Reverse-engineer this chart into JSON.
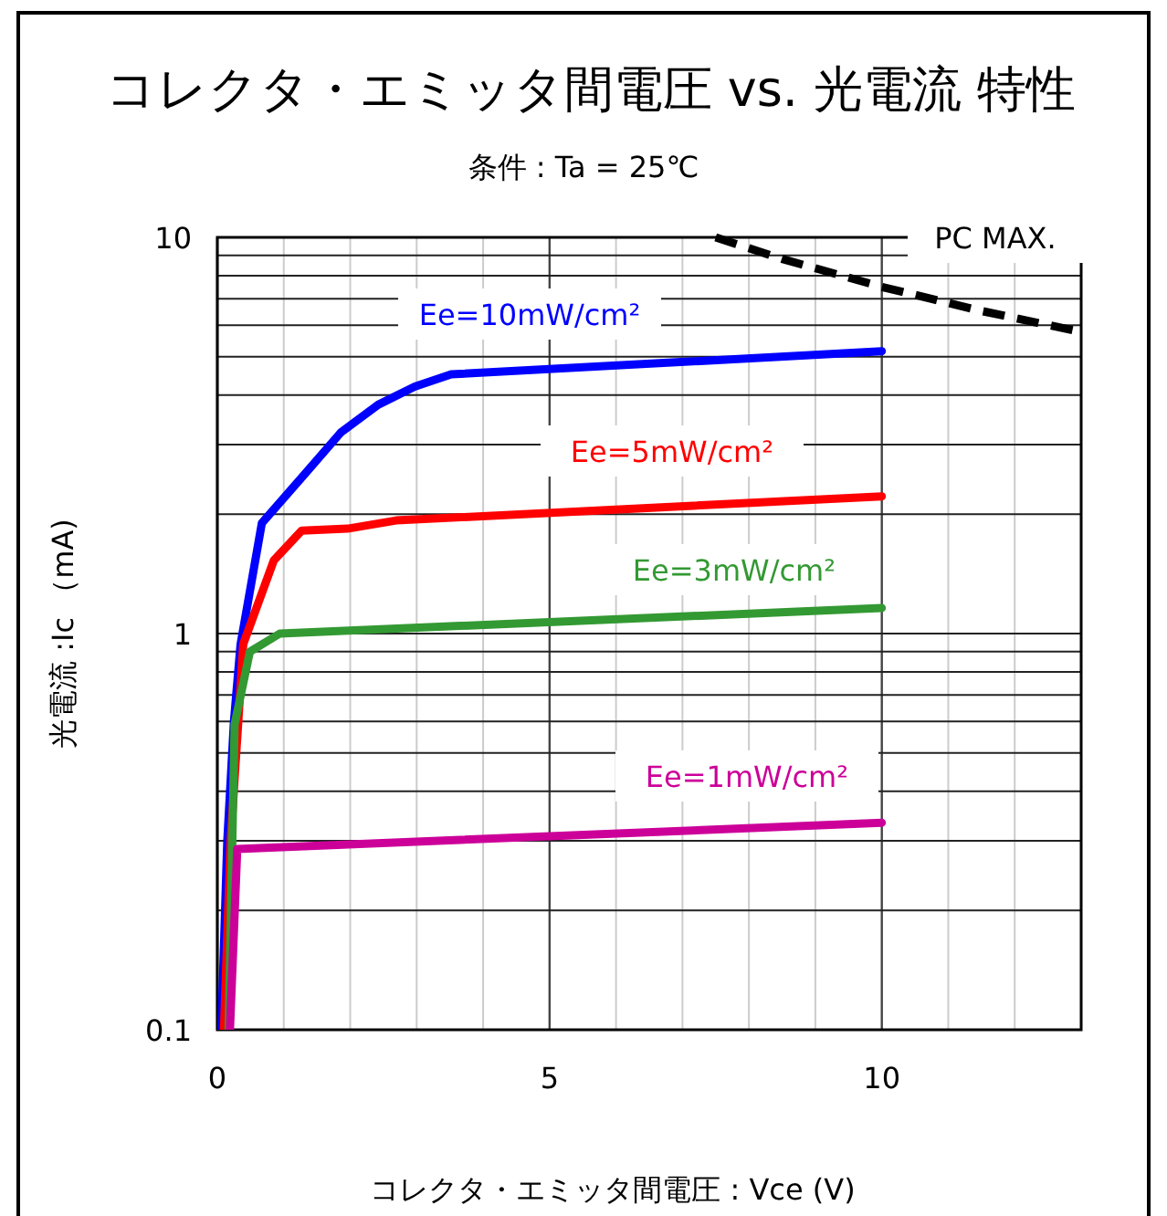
{
  "chart_data": {
    "type": "line",
    "title": "コレクタ・エミッタ間電圧 vs. 光電流 特性",
    "subtitle": "条件 : Ta = 25℃",
    "xlabel": "コレクタ・エミッタ間電圧 : Vce (V)",
    "ylabel": "光電流 :Ic （mA)",
    "xlim": [
      0,
      13
    ],
    "xticks": [
      0,
      {
        "value": 1,
        "label": null
      },
      {
        "value": 2,
        "label": null
      },
      {
        "value": 3,
        "label": null
      },
      {
        "value": 4,
        "label": null
      },
      5,
      {
        "value": 6,
        "label": null
      },
      {
        "value": 7,
        "label": null
      },
      {
        "value": 8,
        "label": null
      },
      {
        "value": 9,
        "label": null
      },
      10,
      {
        "value": 11,
        "label": null
      },
      {
        "value": 12,
        "label": null
      },
      {
        "value": 13,
        "label": null
      }
    ],
    "ylim": [
      0.1,
      10
    ],
    "yticks": [
      0.1,
      {
        "value": 0.2,
        "label": null
      },
      {
        "value": 0.3,
        "label": null
      },
      {
        "value": 0.4,
        "label": null
      },
      {
        "value": 0.5,
        "label": null
      },
      {
        "value": 0.6,
        "label": null
      },
      {
        "value": 0.7,
        "label": null
      },
      {
        "value": 0.8,
        "label": null
      },
      {
        "value": 0.9,
        "label": null
      },
      1,
      {
        "value": 2,
        "label": null
      },
      {
        "value": 3,
        "label": null
      },
      {
        "value": 4,
        "label": null
      },
      {
        "value": 5,
        "label": null
      },
      {
        "value": 6,
        "label": null
      },
      {
        "value": 7,
        "label": null
      },
      {
        "value": 8,
        "label": null
      },
      {
        "value": 9,
        "label": null
      },
      10
    ],
    "log": "y",
    "grid": true,
    "marker": "none",
    "series": [
      {
        "name": "Ee=10mW/cm²",
        "color": "#0000ff",
        "x": [
          0.06,
          0.15,
          0.25,
          0.35,
          0.67,
          1.31,
          1.86,
          2.42,
          2.97,
          3.52,
          10
        ],
        "values": [
          0.1,
          0.3,
          0.6,
          0.94,
          1.9,
          2.52,
          3.22,
          3.78,
          4.2,
          4.51,
          5.16
        ]
      },
      {
        "name": "Ee=5mW/cm²",
        "color": "#ff0000",
        "x": [
          0.1,
          0.2,
          0.39,
          0.85,
          1.27,
          1.96,
          2.69,
          10
        ],
        "values": [
          0.1,
          0.3,
          0.94,
          1.53,
          1.82,
          1.84,
          1.93,
          2.22
        ]
      },
      {
        "name": "Ee=3mW/cm²",
        "color": "#339933",
        "x": [
          0.17,
          0.26,
          0.49,
          0.94,
          10
        ],
        "values": [
          0.1,
          0.59,
          0.9,
          1.0,
          1.16
        ]
      },
      {
        "name": "Ee=1mW/cm²",
        "color": "#cc0099",
        "x": [
          0.19,
          0.3,
          10
        ],
        "values": [
          0.1,
          0.286,
          0.333
        ]
      },
      {
        "name": "PC MAX.",
        "color": "#000000",
        "line_style": "dashed",
        "x": [
          7.5,
          8.5,
          10,
          11.5,
          13
        ],
        "values": [
          10,
          8.82,
          7.5,
          6.52,
          5.77
        ]
      }
    ]
  }
}
